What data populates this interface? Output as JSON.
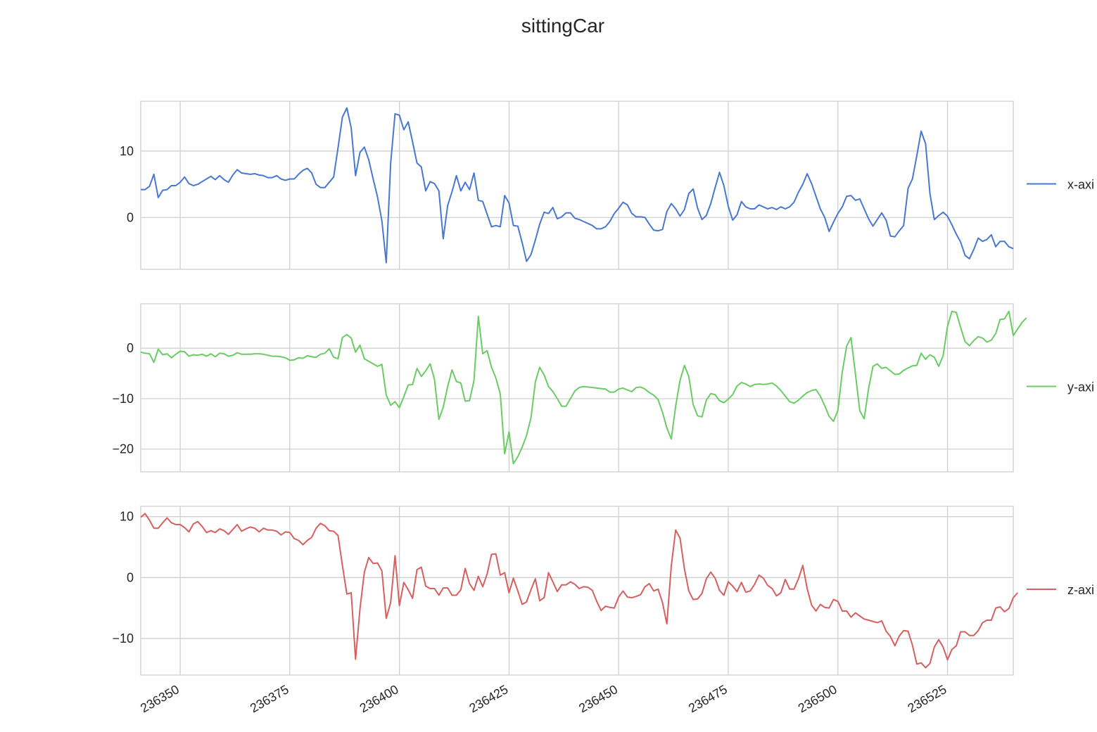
{
  "chart_data": {
    "type": "line",
    "title": "sittingCar",
    "x_ticks": [
      236350,
      236375,
      236400,
      236425,
      236450,
      236475,
      236500,
      236525
    ],
    "xlim": [
      236341,
      236540
    ],
    "x_start": 236341,
    "legend_placement": "right of each panel",
    "grid": true,
    "panels": [
      {
        "name": "x-axis",
        "legend": "x-axi",
        "color": "#4878d0",
        "ylim": [
          -7.8,
          17.5
        ],
        "y_ticks": [
          0,
          10
        ],
        "y_tick_labels": [
          "0",
          "10"
        ],
        "values": [
          4.2,
          4.2,
          4.7,
          6.5,
          3.0,
          4.1,
          4.2,
          4.8,
          4.8,
          5.3,
          6.1,
          5.1,
          4.8,
          5.0,
          5.4,
          5.8,
          6.2,
          5.7,
          6.3,
          5.7,
          5.3,
          6.4,
          7.2,
          6.7,
          6.6,
          6.5,
          6.6,
          6.4,
          6.3,
          6.0,
          6.0,
          6.3,
          5.8,
          5.6,
          5.8,
          5.8,
          6.5,
          7.1,
          7.4,
          6.7,
          5.0,
          4.5,
          4.5,
          5.3,
          6.1,
          10.5,
          15.1,
          16.5,
          13.5,
          6.3,
          9.8,
          10.6,
          8.7,
          5.8,
          3.1,
          -0.5,
          -6.8,
          8.2,
          15.6,
          15.4,
          13.2,
          14.4,
          11.4,
          8.2,
          7.6,
          4.0,
          5.4,
          5.1,
          4.0,
          -3.2,
          1.8,
          3.9,
          6.3,
          4.0,
          5.3,
          4.2,
          6.7,
          2.6,
          2.4,
          0.5,
          -1.4,
          -1.2,
          -1.4,
          3.3,
          2.2,
          -1.2,
          -1.3,
          -3.8,
          -6.6,
          -5.6,
          -3.4,
          -1.0,
          0.8,
          0.6,
          1.5,
          -0.2,
          0.1,
          0.7,
          0.7,
          -0.1,
          -0.3,
          -0.6,
          -0.9,
          -1.2,
          -1.7,
          -1.7,
          -1.4,
          -0.6,
          0.6,
          1.4,
          2.3,
          1.9,
          0.6,
          0.1,
          0.1,
          0.0,
          -1.0,
          -1.9,
          -2.0,
          -1.8,
          0.9,
          2.1,
          1.3,
          0.2,
          1.2,
          3.6,
          4.3,
          1.4,
          -0.3,
          0.3,
          2.1,
          4.5,
          6.8,
          4.8,
          1.7,
          -0.4,
          0.4,
          2.4,
          1.6,
          1.3,
          1.3,
          1.9,
          1.6,
          1.3,
          1.5,
          1.2,
          1.6,
          1.3,
          1.6,
          2.3,
          3.8,
          5.0,
          6.6,
          5.1,
          3.2,
          1.3,
          0.0,
          -2.1,
          -0.7,
          0.6,
          1.6,
          3.2,
          3.3,
          2.6,
          2.8,
          1.3,
          -0.2,
          -1.3,
          -0.3,
          0.7,
          -0.4,
          -2.8,
          -2.9,
          -2.0,
          -1.2,
          4.4,
          5.8,
          9.3,
          13.0,
          11.1,
          3.6,
          -0.3,
          0.3,
          0.8,
          0.2,
          -1.1,
          -2.5,
          -3.7,
          -5.7,
          -6.2,
          -4.8,
          -3.1,
          -3.6,
          -3.3,
          -2.6,
          -4.4,
          -3.6,
          -3.6,
          -4.4,
          -4.7
        ]
      },
      {
        "name": "y-axis",
        "legend": "y-axi",
        "color": "#6acc64",
        "ylim": [
          -24.5,
          8.8
        ],
        "y_ticks": [
          -20,
          -10,
          0
        ],
        "y_tick_labels": [
          "−20",
          "−10",
          "0"
        ],
        "values": [
          -0.8,
          -1.0,
          -1.1,
          -2.8,
          -0.2,
          -1.3,
          -1.1,
          -1.9,
          -1.2,
          -0.6,
          -0.7,
          -1.6,
          -1.3,
          -1.4,
          -1.2,
          -1.6,
          -1.1,
          -1.7,
          -1.0,
          -1.1,
          -1.6,
          -1.4,
          -0.9,
          -1.2,
          -1.2,
          -1.2,
          -1.1,
          -1.1,
          -1.2,
          -1.4,
          -1.6,
          -1.6,
          -1.7,
          -1.9,
          -2.4,
          -2.3,
          -1.9,
          -2.0,
          -1.5,
          -1.7,
          -1.8,
          -1.2,
          -1.0,
          -0.1,
          -1.8,
          -2.1,
          2.1,
          2.7,
          2.0,
          -0.8,
          0.6,
          -2.1,
          -2.6,
          -3.1,
          -3.6,
          -3.2,
          -9.3,
          -11.3,
          -10.6,
          -11.8,
          -9.6,
          -7.3,
          -7.2,
          -4.0,
          -5.6,
          -4.5,
          -3.1,
          -6.2,
          -14.1,
          -11.7,
          -7.6,
          -4.3,
          -6.6,
          -6.9,
          -10.5,
          -10.4,
          -6.4,
          6.3,
          -1.1,
          -0.5,
          -3.8,
          -5.9,
          -9.1,
          -20.9,
          -16.6,
          -22.9,
          -21.5,
          -19.6,
          -17.3,
          -13.8,
          -6.7,
          -3.8,
          -5.3,
          -7.6,
          -8.6,
          -10.0,
          -11.5,
          -11.5,
          -10.0,
          -8.5,
          -7.8,
          -7.6,
          -7.7,
          -7.8,
          -7.9,
          -8.0,
          -8.1,
          -8.7,
          -8.7,
          -8.1,
          -7.9,
          -8.3,
          -8.6,
          -7.8,
          -7.7,
          -8.1,
          -8.8,
          -9.3,
          -10.2,
          -12.7,
          -15.8,
          -18.0,
          -11.5,
          -6.4,
          -3.4,
          -5.6,
          -11.2,
          -13.4,
          -13.6,
          -10.3,
          -9.0,
          -9.2,
          -10.4,
          -10.8,
          -10.1,
          -9.2,
          -7.5,
          -6.8,
          -7.1,
          -7.6,
          -7.2,
          -7.1,
          -7.2,
          -7.1,
          -6.9,
          -7.5,
          -8.4,
          -9.5,
          -10.6,
          -10.9,
          -10.3,
          -9.5,
          -8.8,
          -8.4,
          -8.2,
          -9.5,
          -11.4,
          -13.5,
          -14.5,
          -12.3,
          -4.7,
          0.4,
          2.1,
          -5.1,
          -12.4,
          -14.0,
          -8.0,
          -3.6,
          -3.1,
          -4.0,
          -3.8,
          -4.5,
          -5.2,
          -5.1,
          -4.4,
          -3.9,
          -3.5,
          -3.4,
          -1.0,
          -2.2,
          -1.3,
          -1.8,
          -3.6,
          -1.5,
          4.3,
          7.3,
          7.1,
          4.1,
          1.3,
          0.5,
          1.5,
          2.3,
          2.0,
          1.2,
          1.6,
          2.9,
          5.7,
          5.8,
          7.3,
          2.5,
          3.8,
          5.1,
          6.0
        ]
      },
      {
        "name": "z-axis",
        "legend": "z-axi",
        "color": "#d65f5f",
        "ylim": [
          -16,
          11.7
        ],
        "y_ticks": [
          -10,
          0,
          10
        ],
        "y_tick_labels": [
          "−10",
          "0",
          "10"
        ],
        "values": [
          9.9,
          10.5,
          9.4,
          8.1,
          8.1,
          9.0,
          9.8,
          9.0,
          8.7,
          8.7,
          8.2,
          7.5,
          8.8,
          9.2,
          8.4,
          7.4,
          7.7,
          7.4,
          8.0,
          7.7,
          7.1,
          7.9,
          8.7,
          7.6,
          8.0,
          8.3,
          8.1,
          7.5,
          8.1,
          7.8,
          7.8,
          7.6,
          7.0,
          7.5,
          7.4,
          6.4,
          6.1,
          5.4,
          6.1,
          6.6,
          8.1,
          8.9,
          8.5,
          7.7,
          7.6,
          6.9,
          2.0,
          -2.7,
          -2.5,
          -13.4,
          -5.1,
          0.9,
          3.3,
          2.3,
          2.4,
          1.1,
          -6.7,
          -4.1,
          3.6,
          -4.6,
          -0.8,
          -2.0,
          -3.4,
          1.3,
          1.7,
          -1.4,
          -1.8,
          -1.8,
          -2.9,
          -1.7,
          -1.7,
          -2.9,
          -2.9,
          -2.0,
          1.5,
          -1.0,
          -2.1,
          0.2,
          -1.5,
          0.6,
          3.8,
          3.9,
          0.4,
          0.8,
          -2.5,
          -0.1,
          -2.2,
          -4.4,
          -4.0,
          -2.0,
          -0.2,
          -3.8,
          -3.3,
          0.8,
          -0.7,
          -2.3,
          -1.2,
          -1.2,
          -0.7,
          -1.1,
          -1.8,
          -1.5,
          -1.6,
          -2.1,
          -3.9,
          -5.4,
          -4.7,
          -4.9,
          -5.0,
          -3.2,
          -2.2,
          -3.2,
          -3.3,
          -3.1,
          -2.8,
          -1.5,
          -1.0,
          -2.2,
          -1.9,
          -4.1,
          -7.6,
          1.9,
          7.8,
          6.5,
          1.4,
          -2.2,
          -3.6,
          -3.5,
          -2.6,
          -0.2,
          0.9,
          -0.1,
          -2.1,
          -2.9,
          -0.7,
          -1.4,
          -2.3,
          -0.8,
          -2.4,
          -2.2,
          -1.1,
          0.4,
          -0.1,
          -1.3,
          -1.8,
          -3.0,
          -2.5,
          -0.3,
          -1.9,
          -1.9,
          -0.2,
          2.0,
          -1.8,
          -4.5,
          -5.5,
          -4.4,
          -4.9,
          -5.0,
          -3.6,
          -3.9,
          -5.5,
          -5.5,
          -6.5,
          -5.8,
          -6.3,
          -6.8,
          -7.0,
          -7.2,
          -7.4,
          -7.1,
          -8.8,
          -9.7,
          -11.2,
          -9.6,
          -8.7,
          -8.8,
          -11.1,
          -14.2,
          -14.0,
          -14.8,
          -14.1,
          -11.4,
          -10.2,
          -11.4,
          -13.5,
          -11.8,
          -11.2,
          -8.9,
          -8.9,
          -9.5,
          -9.5,
          -8.7,
          -7.4,
          -7.0,
          -7.0,
          -5.0,
          -4.8,
          -5.6,
          -5.1,
          -3.3,
          -2.5
        ]
      }
    ]
  }
}
